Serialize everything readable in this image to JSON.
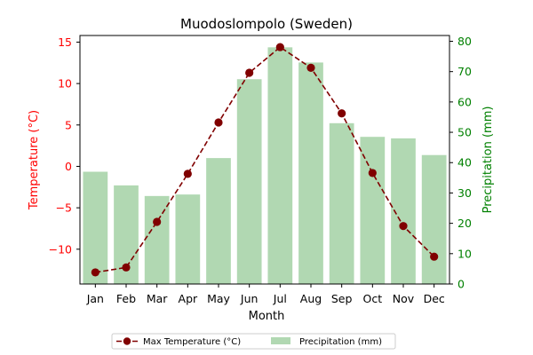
{
  "chart_data": {
    "type": "bar",
    "title": "Muodoslompolo (Sweden)",
    "xlabel": "Month",
    "categories": [
      "Jan",
      "Feb",
      "Mar",
      "Apr",
      "May",
      "Jun",
      "Jul",
      "Aug",
      "Sep",
      "Oct",
      "Nov",
      "Dec"
    ],
    "series": [
      {
        "name": "Max Temperature (°C)",
        "type": "line",
        "axis": "left",
        "style": "dashed line with circle markers",
        "color": "#800000",
        "values": [
          -12.8,
          -12.2,
          -6.7,
          -0.9,
          5.3,
          11.3,
          14.4,
          11.9,
          6.4,
          -0.8,
          -7.2,
          -10.9
        ]
      },
      {
        "name": "Precipitation (mm)",
        "type": "bar",
        "axis": "right",
        "color": "#b1d8b2",
        "values": [
          37,
          32.5,
          29,
          29.5,
          41.5,
          67.5,
          78,
          73,
          53,
          48.5,
          48,
          42.5
        ]
      }
    ],
    "y_left": {
      "label": "Temperature (°C)",
      "color": "#ff0000",
      "range": [
        -14.2,
        15.8
      ],
      "ticks": [
        -10,
        -5,
        0,
        5,
        10,
        15
      ],
      "tick_labels": [
        "−10",
        "−5",
        "0",
        "5",
        "10",
        "15"
      ]
    },
    "y_right": {
      "label": "Precipitation (mm)",
      "color": "#008000",
      "range": [
        0,
        81.9
      ],
      "ticks": [
        0,
        10,
        20,
        30,
        40,
        50,
        60,
        70,
        80
      ],
      "tick_labels": [
        "0",
        "10",
        "20",
        "30",
        "40",
        "50",
        "60",
        "70",
        "80"
      ]
    },
    "grid": false,
    "legend": {
      "placement": "bottom-center, below plot",
      "entries": [
        "Max Temperature (°C)",
        "Precipitation (mm)"
      ]
    }
  }
}
